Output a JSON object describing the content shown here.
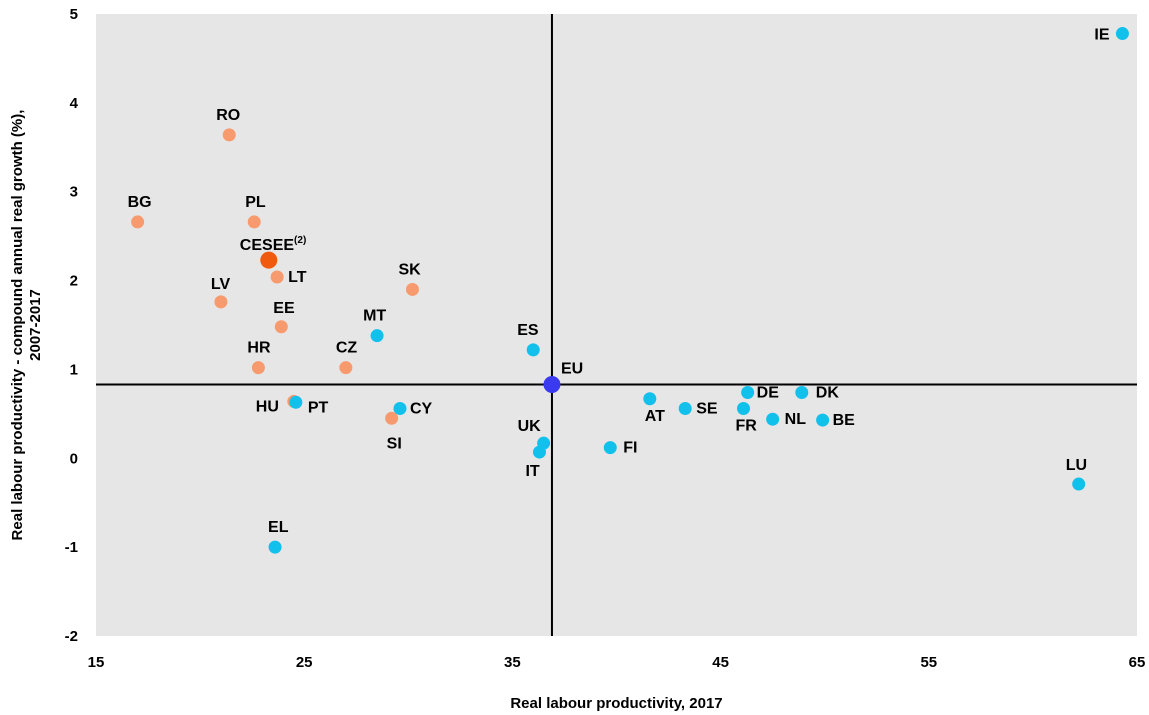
{
  "chart_data": {
    "type": "scatter",
    "xlabel": "Real labour productivity, 2017",
    "ylabel_line1": "Real labour productivity - compound annual real growth (%),",
    "ylabel_line2": "2007-2017",
    "xlim": [
      15,
      65
    ],
    "ylim": [
      -2,
      5
    ],
    "xticks": [
      "15",
      "25",
      "35",
      "45",
      "55",
      "65"
    ],
    "yticks": [
      "-2",
      "-1",
      "0",
      "1",
      "2",
      "3",
      "4",
      "5"
    ],
    "reference_lines": {
      "x": 36.9,
      "y": 0.83
    },
    "grid": false,
    "background": "#e6e6e6",
    "colors": {
      "cesee_members": "#f79a6e",
      "cesee_aggregate": "#f05a0f",
      "other_members": "#12c0ec",
      "eu": "#3a3af0"
    },
    "points": [
      {
        "label": "IE",
        "x": 64.3,
        "y": 4.78,
        "group": "other_members"
      },
      {
        "label": "RO",
        "x": 21.4,
        "y": 3.64,
        "group": "cesee_members"
      },
      {
        "label": "BG",
        "x": 17.0,
        "y": 2.66,
        "group": "cesee_members"
      },
      {
        "label": "PL",
        "x": 22.6,
        "y": 2.66,
        "group": "cesee_members"
      },
      {
        "label": "CESEE",
        "sup": "(2)",
        "x": 23.3,
        "y": 2.23,
        "group": "cesee_aggregate"
      },
      {
        "label": "LT",
        "x": 23.7,
        "y": 2.04,
        "group": "cesee_members"
      },
      {
        "label": "SK",
        "x": 30.2,
        "y": 1.9,
        "group": "cesee_members"
      },
      {
        "label": "LV",
        "x": 21.0,
        "y": 1.76,
        "group": "cesee_members"
      },
      {
        "label": "EE",
        "x": 23.9,
        "y": 1.48,
        "group": "cesee_members"
      },
      {
        "label": "MT",
        "x": 28.5,
        "y": 1.38,
        "group": "other_members"
      },
      {
        "label": "ES",
        "x": 36.0,
        "y": 1.22,
        "group": "other_members"
      },
      {
        "label": "HR",
        "x": 22.8,
        "y": 1.02,
        "group": "cesee_members"
      },
      {
        "label": "CZ",
        "x": 27.0,
        "y": 1.02,
        "group": "cesee_members"
      },
      {
        "label": "EU",
        "x": 36.9,
        "y": 0.83,
        "group": "eu"
      },
      {
        "label": "DE",
        "x": 46.3,
        "y": 0.74,
        "group": "other_members"
      },
      {
        "label": "DK",
        "x": 48.9,
        "y": 0.74,
        "group": "other_members"
      },
      {
        "label": "AT",
        "x": 41.6,
        "y": 0.67,
        "group": "other_members"
      },
      {
        "label": "HU",
        "x": 24.5,
        "y": 0.64,
        "group": "cesee_members"
      },
      {
        "label": "PT",
        "x": 24.6,
        "y": 0.63,
        "group": "other_members"
      },
      {
        "label": "SE",
        "x": 43.3,
        "y": 0.56,
        "group": "other_members"
      },
      {
        "label": "FR",
        "x": 46.1,
        "y": 0.56,
        "group": "other_members"
      },
      {
        "label": "CY",
        "x": 29.6,
        "y": 0.56,
        "group": "other_members"
      },
      {
        "label": "SI",
        "x": 29.2,
        "y": 0.45,
        "group": "cesee_members"
      },
      {
        "label": "NL",
        "x": 47.5,
        "y": 0.44,
        "group": "other_members"
      },
      {
        "label": "BE",
        "x": 49.9,
        "y": 0.43,
        "group": "other_members"
      },
      {
        "label": "UK",
        "x": 36.5,
        "y": 0.17,
        "group": "other_members"
      },
      {
        "label": "FI",
        "x": 39.7,
        "y": 0.12,
        "group": "other_members"
      },
      {
        "label": "IT",
        "x": 36.3,
        "y": 0.07,
        "group": "other_members"
      },
      {
        "label": "LU",
        "x": 62.2,
        "y": -0.29,
        "group": "other_members"
      },
      {
        "label": "EL",
        "x": 23.6,
        "y": -1.0,
        "group": "other_members"
      }
    ]
  }
}
